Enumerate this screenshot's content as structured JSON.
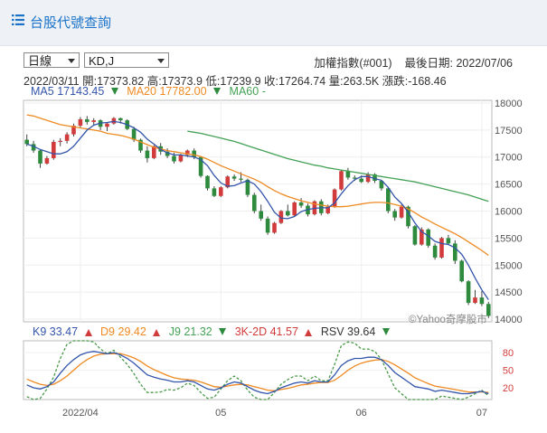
{
  "header": {
    "title": "台股代號查詢",
    "menu_icon": "list-icon"
  },
  "controls": {
    "period": "日線",
    "indicator": "KD,J"
  },
  "meta": {
    "index_name": "加權指數(#001)",
    "last_date_label": "最後日期:",
    "last_date": "2022/07/06"
  },
  "ohlc": {
    "date": "2022/03/11",
    "open_label": "開:",
    "open": "17373.82",
    "high_label": "高:",
    "high": "17373.9",
    "low_label": "低:",
    "low": "17239.9",
    "close_label": "收:",
    "close": "17264.74",
    "volume_label": "量:",
    "volume": "263.5K",
    "change_label": "漲跌:",
    "change": "-168.46"
  },
  "ma": {
    "ma5_label": "MA5",
    "ma5": "17143.45",
    "ma20_label": "MA20",
    "ma20": "17782.00",
    "ma60_label": "MA60",
    "ma60": "-"
  },
  "kd": {
    "k_label": "K9",
    "k": "33.47",
    "d_label": "D9",
    "d": "29.42",
    "j_label": "J9",
    "j": "21.32",
    "k3d2_label": "3K-2D",
    "k3d2": "41.57",
    "rsv_label": "RSV",
    "rsv": "39.64"
  },
  "watermark": "©Yahoo奇摩股市",
  "colors": {
    "up": "#d23b3b",
    "down": "#2e8b3e",
    "ma5": "#3355aa",
    "ma20": "#ee8a22",
    "ma60": "#44a055",
    "j": "#4a9a4a"
  },
  "chart_data": {
    "type": "candlestick",
    "x_ticks": [
      "2022/04",
      "05",
      "06",
      "07"
    ],
    "y_ticks": [
      14000,
      14500,
      15000,
      15500,
      16000,
      16500,
      17000,
      17500,
      18000
    ],
    "ylim": [
      13950,
      18050
    ],
    "candles": [
      [
        17320,
        17420,
        17200,
        17240
      ],
      [
        17240,
        17300,
        17080,
        17120
      ],
      [
        17120,
        17140,
        16800,
        16880
      ],
      [
        16880,
        17020,
        16860,
        16980
      ],
      [
        16980,
        17320,
        16950,
        17280
      ],
      [
        17280,
        17350,
        17200,
        17300
      ],
      [
        17300,
        17460,
        17250,
        17420
      ],
      [
        17420,
        17620,
        17380,
        17580
      ],
      [
        17580,
        17740,
        17540,
        17700
      ],
      [
        17700,
        17760,
        17600,
        17650
      ],
      [
        17650,
        17720,
        17580,
        17680
      ],
      [
        17680,
        17700,
        17500,
        17560
      ],
      [
        17560,
        17640,
        17480,
        17620
      ],
      [
        17620,
        17740,
        17600,
        17720
      ],
      [
        17720,
        17730,
        17620,
        17680
      ],
      [
        17680,
        17700,
        17500,
        17520
      ],
      [
        17520,
        17560,
        17280,
        17320
      ],
      [
        17320,
        17340,
        17080,
        17120
      ],
      [
        17120,
        17200,
        16900,
        16980
      ],
      [
        16980,
        17220,
        16960,
        17200
      ],
      [
        17200,
        17260,
        17040,
        17100
      ],
      [
        17100,
        17160,
        16980,
        17020
      ],
      [
        17020,
        17080,
        16880,
        16920
      ],
      [
        16920,
        17060,
        16900,
        17040
      ],
      [
        17040,
        17140,
        17000,
        17120
      ],
      [
        17120,
        17160,
        16960,
        17000
      ],
      [
        17000,
        17020,
        16620,
        16650
      ],
      [
        16650,
        16660,
        16380,
        16420
      ],
      [
        16420,
        16460,
        16260,
        16280
      ],
      [
        16280,
        16460,
        16260,
        16440
      ],
      [
        16440,
        16660,
        16420,
        16640
      ],
      [
        16640,
        16680,
        16560,
        16600
      ],
      [
        16600,
        16720,
        16540,
        16580
      ],
      [
        16580,
        16600,
        16260,
        16300
      ],
      [
        16300,
        16340,
        15960,
        16000
      ],
      [
        16000,
        16120,
        15820,
        15860
      ],
      [
        15860,
        15900,
        15560,
        15600
      ],
      [
        15600,
        15800,
        15580,
        15780
      ],
      [
        15780,
        16020,
        15760,
        16000
      ],
      [
        16000,
        16120,
        15900,
        15920
      ],
      [
        15920,
        16180,
        15900,
        16160
      ],
      [
        16160,
        16240,
        16060,
        16100
      ],
      [
        16100,
        16140,
        15900,
        15940
      ],
      [
        15940,
        16200,
        15920,
        16180
      ],
      [
        16180,
        16220,
        15920,
        15960
      ],
      [
        15960,
        16120,
        15940,
        16080
      ],
      [
        16080,
        16420,
        16060,
        16400
      ],
      [
        16400,
        16760,
        16380,
        16740
      ],
      [
        16740,
        16800,
        16580,
        16620
      ],
      [
        16620,
        16660,
        16560,
        16600
      ],
      [
        16600,
        16660,
        16520,
        16540
      ],
      [
        16540,
        16720,
        16520,
        16680
      ],
      [
        16680,
        16700,
        16520,
        16560
      ],
      [
        16560,
        16580,
        16380,
        16420
      ],
      [
        16420,
        16440,
        15960,
        16000
      ],
      [
        16000,
        16040,
        15820,
        15880
      ],
      [
        15880,
        16120,
        15860,
        16080
      ],
      [
        16080,
        16100,
        15680,
        15720
      ],
      [
        15720,
        15740,
        15360,
        15380
      ],
      [
        15380,
        15700,
        15360,
        15660
      ],
      [
        15660,
        15680,
        15320,
        15360
      ],
      [
        15360,
        15400,
        15100,
        15140
      ],
      [
        15140,
        15520,
        15120,
        15500
      ],
      [
        15500,
        15560,
        15380,
        15400
      ],
      [
        15400,
        15460,
        15020,
        15080
      ],
      [
        15080,
        15100,
        14680,
        14700
      ],
      [
        14700,
        14720,
        14260,
        14300
      ],
      [
        14300,
        14540,
        14280,
        14400
      ],
      [
        14400,
        14520,
        14240,
        14280
      ],
      [
        14280,
        14320,
        14020,
        14060
      ]
    ],
    "ma5": [
      17240,
      17200,
      17140,
      17100,
      17060,
      17060,
      17100,
      17200,
      17350,
      17500,
      17590,
      17630,
      17640,
      17660,
      17640,
      17600,
      17540,
      17460,
      17330,
      17240,
      17140,
      17080,
      17040,
      17040,
      17020,
      17000,
      16950,
      16840,
      16660,
      16520,
      16460,
      16470,
      16520,
      16560,
      16500,
      16360,
      16180,
      15980,
      15870,
      15860,
      15900,
      15990,
      16030,
      16050,
      16060,
      16060,
      16150,
      16320,
      16470,
      16580,
      16640,
      16640,
      16600,
      16570,
      16440,
      16260,
      16140,
      15980,
      15780,
      15620,
      15540,
      15440,
      15400,
      15380,
      15320,
      15200,
      15000,
      14760,
      14540,
      14360
    ],
    "ma20": [
      17780,
      17760,
      17720,
      17680,
      17640,
      17600,
      17580,
      17560,
      17540,
      17520,
      17500,
      17480,
      17440,
      17420,
      17400,
      17370,
      17330,
      17280,
      17230,
      17180,
      17150,
      17120,
      17100,
      17080,
      17060,
      17040,
      17010,
      16960,
      16900,
      16840,
      16790,
      16740,
      16690,
      16640,
      16590,
      16530,
      16450,
      16380,
      16320,
      16270,
      16230,
      16190,
      16160,
      16130,
      16110,
      16090,
      16080,
      16080,
      16090,
      16110,
      16130,
      16150,
      16160,
      16160,
      16150,
      16120,
      16090,
      16040,
      15970,
      15890,
      15830,
      15760,
      15700,
      15640,
      15580,
      15510,
      15430,
      15350,
      15270,
      15180
    ],
    "ma60": [
      null,
      null,
      null,
      null,
      null,
      null,
      null,
      null,
      null,
      null,
      null,
      null,
      null,
      null,
      null,
      null,
      null,
      null,
      null,
      null,
      null,
      null,
      null,
      null,
      17480,
      17460,
      17440,
      17410,
      17380,
      17350,
      17320,
      17290,
      17250,
      17210,
      17170,
      17130,
      17090,
      17050,
      17010,
      16970,
      16940,
      16910,
      16880,
      16850,
      16830,
      16800,
      16780,
      16760,
      16740,
      16720,
      16700,
      16680,
      16660,
      16640,
      16620,
      16600,
      16580,
      16560,
      16540,
      16510,
      16480,
      16450,
      16420,
      16390,
      16360,
      16330,
      16300,
      16260,
      16220,
      16180
    ],
    "kd_ylim": [
      0,
      100
    ],
    "kd_ticks": [
      20,
      50,
      80
    ],
    "k": [
      25,
      20,
      18,
      22,
      30,
      45,
      58,
      68,
      76,
      80,
      82,
      80,
      78,
      80,
      76,
      70,
      62,
      52,
      42,
      38,
      35,
      33,
      30,
      30,
      32,
      30,
      24,
      18,
      16,
      20,
      26,
      30,
      28,
      22,
      16,
      12,
      10,
      14,
      20,
      24,
      28,
      30,
      28,
      32,
      30,
      30,
      42,
      58,
      66,
      70,
      70,
      72,
      72,
      68,
      58,
      46,
      38,
      30,
      22,
      20,
      18,
      14,
      16,
      14,
      12,
      10,
      10,
      12,
      14,
      10
    ],
    "d": [
      35,
      30,
      26,
      24,
      26,
      32,
      40,
      50,
      60,
      68,
      74,
      77,
      78,
      78,
      78,
      75,
      71,
      65,
      57,
      51,
      46,
      41,
      37,
      35,
      34,
      33,
      30,
      26,
      22,
      21,
      23,
      25,
      26,
      25,
      22,
      19,
      16,
      15,
      17,
      19,
      22,
      25,
      26,
      28,
      29,
      29,
      33,
      41,
      50,
      57,
      62,
      65,
      67,
      68,
      65,
      59,
      52,
      45,
      37,
      32,
      27,
      23,
      21,
      19,
      17,
      15,
      13,
      13,
      13,
      12
    ],
    "j": [
      5,
      0,
      2,
      18,
      38,
      70,
      94,
      100,
      100,
      100,
      98,
      86,
      78,
      84,
      72,
      60,
      44,
      26,
      12,
      12,
      13,
      17,
      16,
      20,
      28,
      24,
      12,
      2,
      4,
      18,
      32,
      40,
      32,
      16,
      4,
      0,
      0,
      12,
      26,
      34,
      40,
      40,
      32,
      40,
      32,
      32,
      60,
      92,
      98,
      96,
      86,
      86,
      82,
      68,
      44,
      20,
      10,
      0,
      0,
      0,
      0,
      0,
      6,
      4,
      2,
      0,
      4,
      10,
      16,
      6
    ]
  }
}
